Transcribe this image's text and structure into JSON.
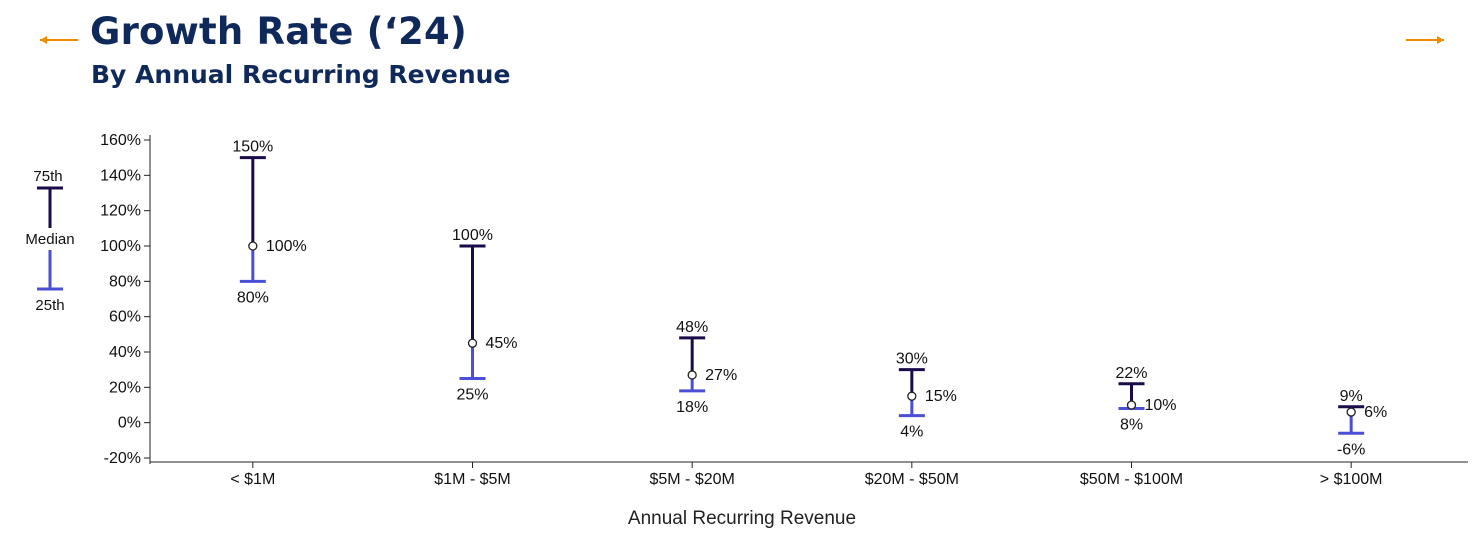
{
  "header": {
    "title": "Growth Rate (‘24)",
    "subtitle": "By Annual Recurring Revenue"
  },
  "colors": {
    "title": "#0f2a5a",
    "upper": "#1a0a4a",
    "lower": "#4b4fd6",
    "arrow": "#f08a00"
  },
  "nav": {
    "prev_icon": "arrow-left-icon",
    "next_icon": "arrow-right-icon"
  },
  "legend": {
    "upper": "75th",
    "median": "Median",
    "lower": "25th"
  },
  "chart_data": {
    "type": "range",
    "xlabel": "Annual Recurring Revenue",
    "ylabel": "",
    "ylim": [
      -20,
      160
    ],
    "yticks": [
      -20,
      0,
      20,
      40,
      60,
      80,
      100,
      120,
      140,
      160
    ],
    "ytick_suffix": "%",
    "categories": [
      "< $1M",
      "$1M - $5M",
      "$5M - $20M",
      "$20M - $50M",
      "$50M - $100M",
      "> $100M"
    ],
    "series": [
      {
        "name": "75th",
        "values": [
          150,
          100,
          48,
          30,
          22,
          9
        ]
      },
      {
        "name": "Median",
        "values": [
          100,
          45,
          27,
          15,
          10,
          6
        ]
      },
      {
        "name": "25th",
        "values": [
          80,
          25,
          18,
          4,
          8,
          -6
        ]
      }
    ]
  }
}
